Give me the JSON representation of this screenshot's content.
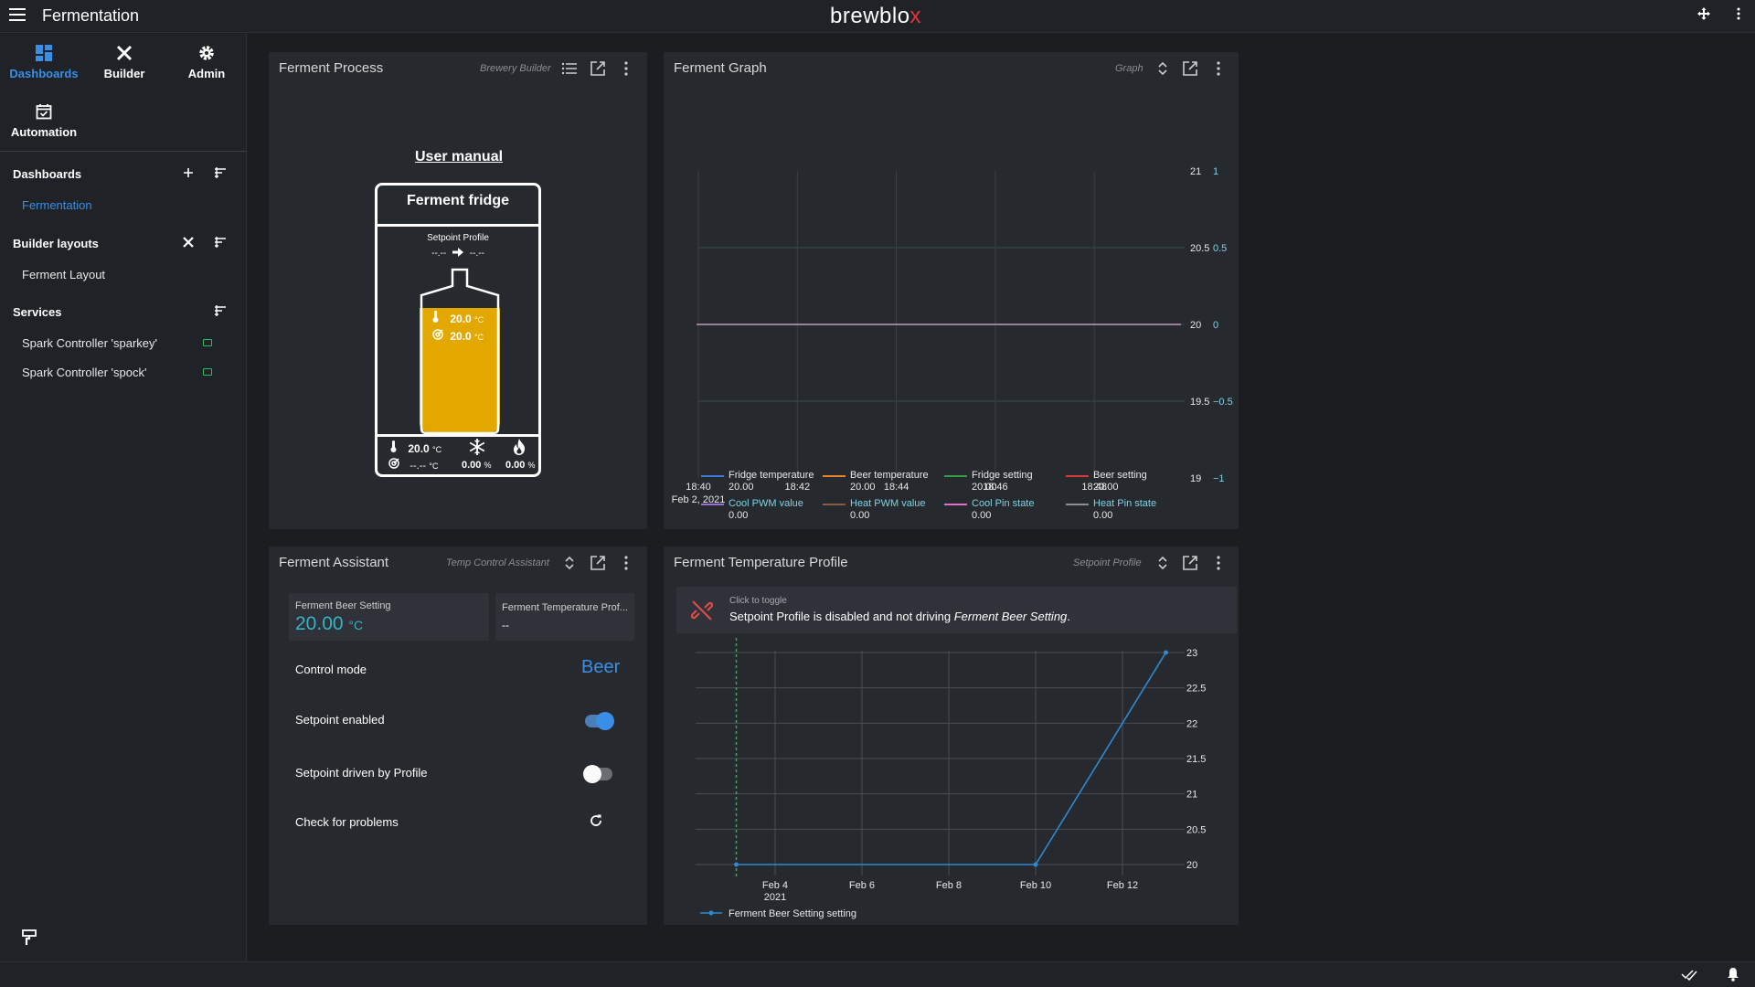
{
  "app": {
    "page_title": "Fermentation",
    "brand_main": "brewblo",
    "brand_accent": "x"
  },
  "sidebar": {
    "nav": [
      {
        "label": "Dashboards",
        "icon": "dashboard-icon",
        "active": true
      },
      {
        "label": "Builder",
        "icon": "builder-tools-icon",
        "active": false
      },
      {
        "label": "Admin",
        "icon": "gear-icon",
        "active": false
      },
      {
        "label": "Automation",
        "icon": "calendar-check-icon",
        "active": false
      }
    ],
    "dashboards_heading": "Dashboards",
    "dashboards": [
      {
        "label": "Fermentation",
        "active": true
      }
    ],
    "builder_heading": "Builder layouts",
    "builder_layouts": [
      {
        "label": "Ferment Layout"
      }
    ],
    "services_heading": "Services",
    "services": [
      {
        "label": "Spark Controller 'sparkey'",
        "status": "connected"
      },
      {
        "label": "Spark Controller 'spock'",
        "status": "connected"
      }
    ]
  },
  "widgets": {
    "process": {
      "title": "Ferment Process",
      "type": "Brewery Builder",
      "manual_link": "User manual",
      "fridge_name": "Ferment fridge",
      "setpoint_profile_label": "Setpoint Profile",
      "setpoint_from": "--.--",
      "setpoint_to": "--.--",
      "vessel_temp": "20.0",
      "vessel_setting": "20.0",
      "temp_unit": "°C",
      "fridge_temp": "20.0",
      "fridge_setting": "--.--",
      "cool_pct": "0.00",
      "heat_pct": "0.00",
      "pct_unit": "%"
    },
    "graph": {
      "title": "Ferment Graph",
      "type": "Graph",
      "legend": [
        {
          "name": "Fridge temperature",
          "value": "20.00",
          "color": "#3a7bd5"
        },
        {
          "name": "Beer temperature",
          "value": "20.00",
          "color": "#e8832a"
        },
        {
          "name": "Fridge setting",
          "value": "20.00",
          "color": "#2ea043"
        },
        {
          "name": "Beer setting",
          "value": "20.00",
          "color": "#d83a3a"
        },
        {
          "name": "Cool PWM value",
          "value": "0.00",
          "color": "#9a6fd8"
        },
        {
          "name": "Heat PWM value",
          "value": "0.00",
          "color": "#8a5a44"
        },
        {
          "name": "Cool Pin state",
          "value": "0.00",
          "color": "#e06fc8"
        },
        {
          "name": "Heat Pin state",
          "value": "0.00",
          "color": "#8a8e95"
        }
      ]
    },
    "assistant": {
      "title": "Ferment Assistant",
      "type": "Temp Control Assistant",
      "beer_setting_label": "Ferment Beer Setting",
      "beer_setting_value": "20.00",
      "beer_setting_unit": "°C",
      "profile_label": "Ferment Temperature Prof...",
      "profile_value": "--",
      "control_mode_label": "Control mode",
      "control_mode_value": "Beer",
      "setpoint_enabled_label": "Setpoint enabled",
      "setpoint_enabled": true,
      "driven_label": "Setpoint driven by Profile",
      "driven": false,
      "check_label": "Check for problems"
    },
    "profile": {
      "title": "Ferment Temperature Profile",
      "type": "Setpoint Profile",
      "toggle_hint": "Click to toggle",
      "message_prefix": "Setpoint Profile is disabled and not driving",
      "message_target": "Ferment Beer Setting",
      "message_suffix": "."
    }
  },
  "chart_data": [
    {
      "type": "line",
      "x": [
        "18:40",
        "18:42",
        "18:44",
        "18:46",
        "18:48"
      ],
      "x_sub_label": "Feb 2, 2021",
      "y_left_ticks": [
        "21",
        "20.5",
        "20",
        "19.5",
        "19"
      ],
      "y_right_ticks": [
        "1",
        "0.5",
        "0",
        "−0.5",
        "−1"
      ],
      "ylim": [
        19,
        21
      ],
      "y2lim": [
        -1,
        1
      ],
      "grid": true,
      "legend_position": "bottom",
      "series": [
        {
          "name": "Fridge temperature",
          "values": [
            20,
            20,
            20,
            20,
            20
          ]
        },
        {
          "name": "Beer temperature",
          "values": [
            20,
            20,
            20,
            20,
            20
          ]
        },
        {
          "name": "Fridge setting",
          "values": [
            20,
            20,
            20,
            20,
            20
          ]
        },
        {
          "name": "Beer setting",
          "values": [
            20,
            20,
            20,
            20,
            20
          ]
        },
        {
          "name": "Cool PWM value",
          "values": [
            0,
            0,
            0,
            0,
            0
          ]
        },
        {
          "name": "Heat PWM value",
          "values": [
            0,
            0,
            0,
            0,
            0
          ]
        },
        {
          "name": "Cool Pin state",
          "values": [
            0,
            0,
            0,
            0,
            0
          ]
        },
        {
          "name": "Heat Pin state",
          "values": [
            0,
            0,
            0,
            0,
            0
          ]
        }
      ]
    },
    {
      "type": "line",
      "x_ticks": [
        "Feb 4",
        "Feb 6",
        "Feb 8",
        "Feb 10",
        "Feb 12"
      ],
      "x_sub_label": "2021",
      "y_ticks": [
        "23",
        "22.5",
        "22",
        "21.5",
        "21",
        "20.5",
        "20"
      ],
      "ylim": [
        20,
        23
      ],
      "grid": true,
      "legend_position": "bottom",
      "series": [
        {
          "name": "Ferment Beer Setting setting",
          "points": [
            {
              "x": "Feb 3",
              "y": 20
            },
            {
              "x": "Feb 10",
              "y": 20
            },
            {
              "x": "Feb 13",
              "y": 23
            }
          ]
        }
      ]
    }
  ]
}
